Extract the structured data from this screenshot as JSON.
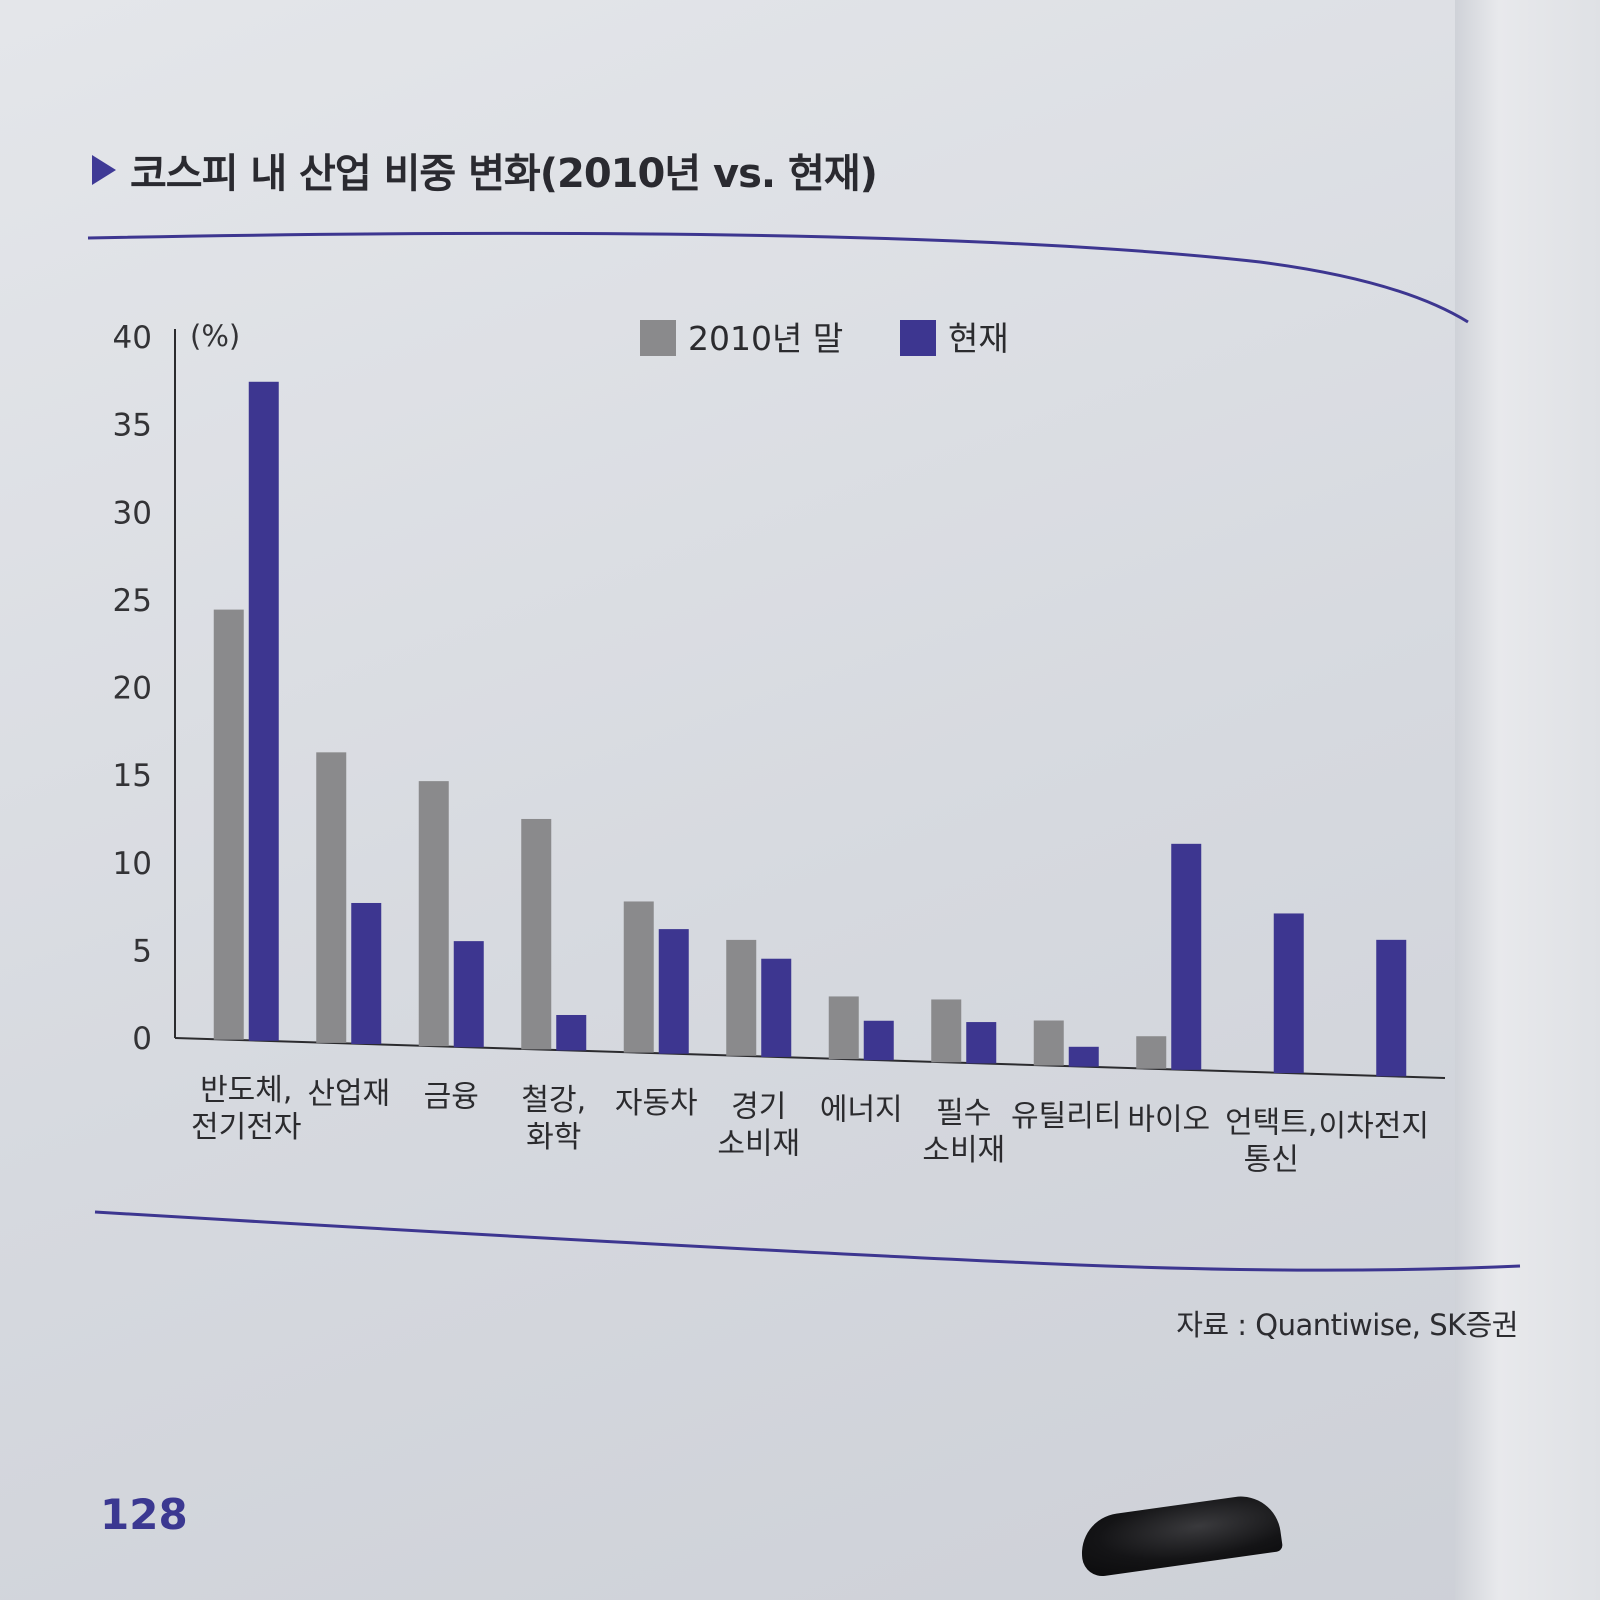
{
  "header": {
    "title": "코스피 내 산업 비중 변화(2010년 vs. 현재)"
  },
  "chart_data": {
    "type": "bar",
    "title": "코스피 내 산업 비중 변화(2010년 vs. 현재)",
    "ylabel": "(%)",
    "xlabel": "",
    "ylim": [
      0,
      40
    ],
    "yticks": [
      0,
      5,
      10,
      15,
      20,
      25,
      30,
      35,
      40
    ],
    "legend_position": "top-center",
    "categories": [
      [
        "반도체,",
        "전기전자"
      ],
      [
        "산업재"
      ],
      [
        "금융"
      ],
      [
        "철강,",
        "화학"
      ],
      [
        "자동차"
      ],
      [
        "경기",
        "소비재"
      ],
      [
        "에너지"
      ],
      [
        "필수",
        "소비재"
      ],
      [
        "유틸리티"
      ],
      [
        "바이오"
      ],
      [
        "언택트,",
        "통신"
      ],
      [
        "이차전지"
      ]
    ],
    "series": [
      {
        "name": "2010년 말",
        "color": "#8a8a8c",
        "values": [
          24.5,
          16.5,
          15.0,
          13.0,
          8.5,
          6.5,
          3.5,
          3.5,
          2.5,
          1.8,
          null,
          null
        ]
      },
      {
        "name": "현재",
        "color": "#3d3690",
        "values": [
          37.5,
          8.0,
          6.0,
          2.0,
          7.0,
          5.5,
          2.2,
          2.3,
          1.1,
          12.5,
          8.8,
          7.5
        ]
      }
    ],
    "grid": false
  },
  "footer": {
    "source": "자료 : Quantiwise, SK증권",
    "page_number": "128"
  }
}
